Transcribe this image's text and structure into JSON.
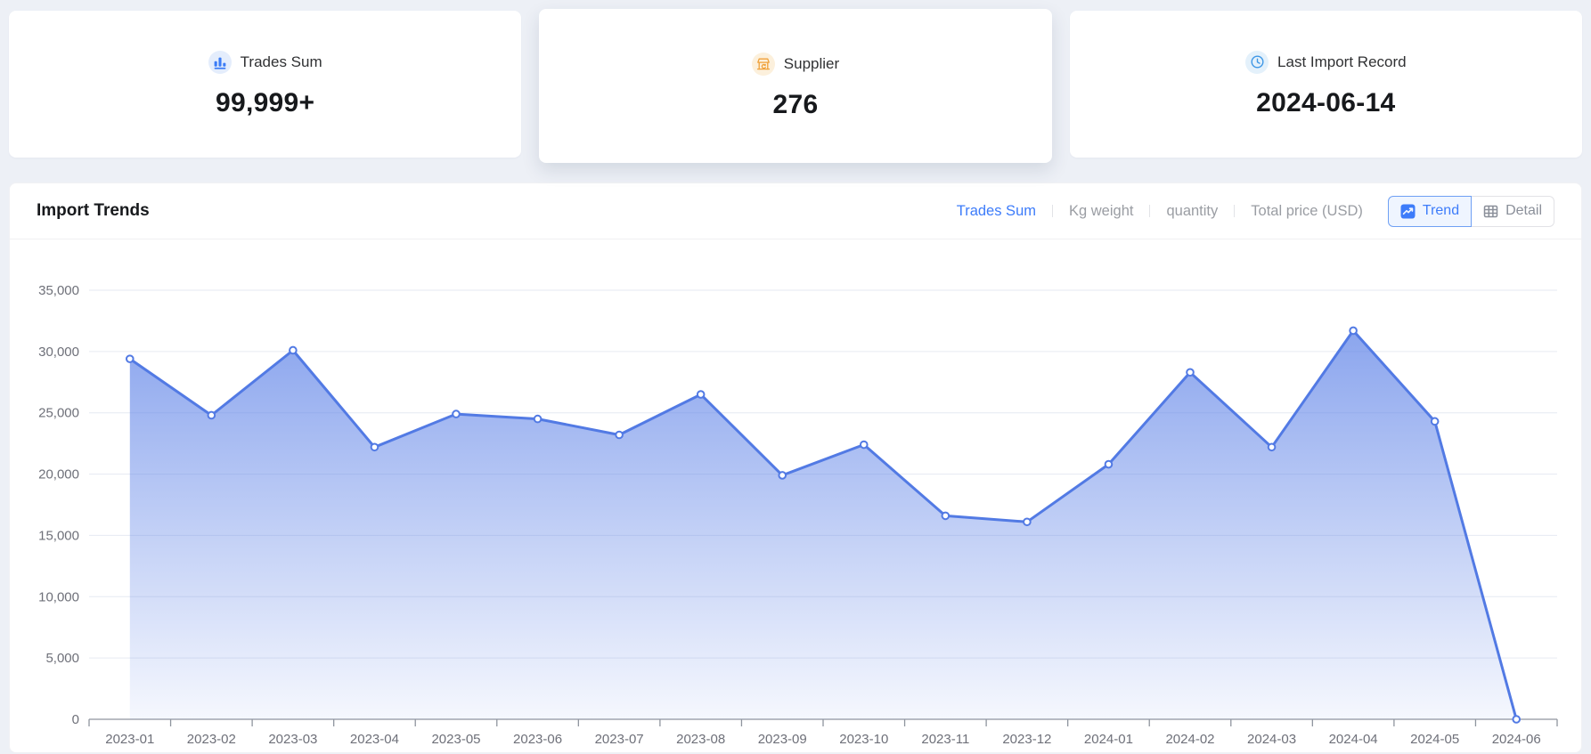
{
  "stats_cards": [
    {
      "label": "Trades Sum",
      "value": "99,999+",
      "icon": "bar-chart-icon",
      "icon_color": "#3B7CF6",
      "icon_bg": "#E4EDFC"
    },
    {
      "label": "Supplier",
      "value": "276",
      "icon": "storefront-icon",
      "icon_color": "#F0A13A",
      "icon_bg": "#FCF0DC"
    },
    {
      "label": "Last Import Record",
      "value": "2024-06-14",
      "icon": "clock-icon",
      "icon_color": "#3E97E6",
      "icon_bg": "#E4F1FB"
    }
  ],
  "trends_panel": {
    "title": "Import Trends",
    "accent_color": "#3D7CFA",
    "metric_tabs": [
      {
        "label": "Trades Sum",
        "active": true
      },
      {
        "label": "Kg weight",
        "active": false
      },
      {
        "label": "quantity",
        "active": false
      },
      {
        "label": "Total price (USD)",
        "active": false
      }
    ],
    "view_toggle": [
      {
        "label": "Trend",
        "icon": "trend-icon",
        "active": true
      },
      {
        "label": "Detail",
        "icon": "table-icon",
        "active": false
      }
    ]
  },
  "chart_data": {
    "type": "area",
    "title": "Import Trends",
    "xlabel": "",
    "ylabel": "",
    "x": [
      "2023-01",
      "2023-02",
      "2023-03",
      "2023-04",
      "2023-05",
      "2023-06",
      "2023-07",
      "2023-08",
      "2023-09",
      "2023-10",
      "2023-11",
      "2023-12",
      "2024-01",
      "2024-02",
      "2024-03",
      "2024-04",
      "2024-05",
      "2024-06"
    ],
    "series": [
      {
        "name": "Trades Sum",
        "values": [
          29400,
          24800,
          30100,
          22200,
          24900,
          24500,
          23200,
          26500,
          19900,
          22400,
          16600,
          16100,
          20800,
          28300,
          22200,
          31700,
          24300,
          0
        ]
      }
    ],
    "ylim": [
      0,
      35000
    ],
    "ytick_values": [
      0,
      5000,
      10000,
      15000,
      20000,
      25000,
      30000,
      35000
    ],
    "ytick_labels": [
      "0",
      "5,000",
      "10,000",
      "15,000",
      "20,000",
      "25,000",
      "30,000",
      "35,000"
    ],
    "grid": true,
    "legend": "none",
    "colors": {
      "line": "#527AE4",
      "marker_fill": "#FFFFFF",
      "area_top": "rgba(92,129,231,0.78)",
      "area_bottom": "rgba(92,129,231,0.06)",
      "gridline": "#E6EAF2",
      "axis_line": "#8F959E",
      "axis_label": "#6E7079"
    }
  }
}
